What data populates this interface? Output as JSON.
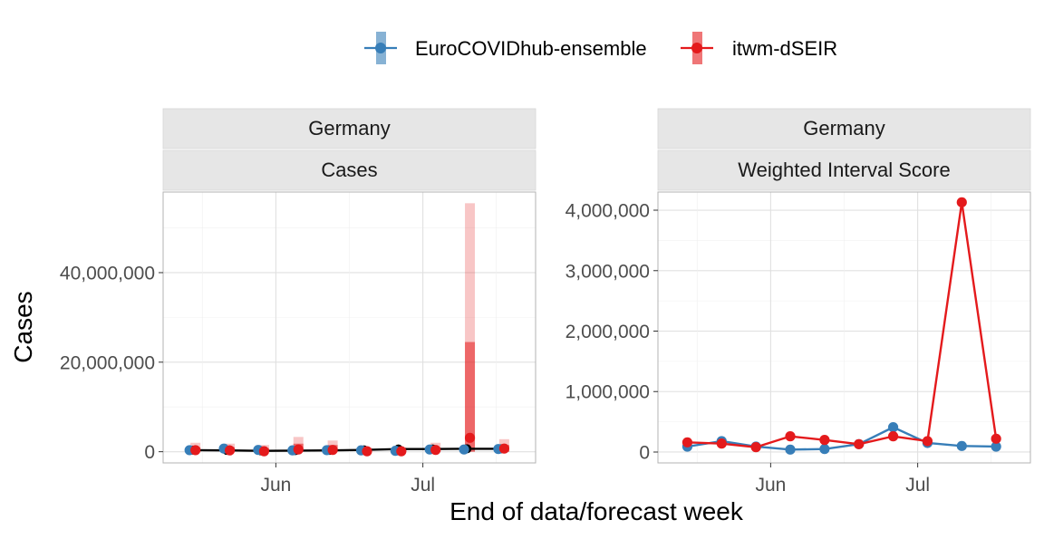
{
  "legend": [
    {
      "label": "EuroCOVIDhub-ensemble",
      "color": "#377EB8"
    },
    {
      "label": "itwm-dSEIR",
      "color": "#E41A1C"
    }
  ],
  "xlabel": "End of data/forecast week",
  "ylabel": "Cases",
  "observed_color": "#000000",
  "chart_data": [
    {
      "type": "line",
      "strip_top": "Germany",
      "strip_bottom": "Cases",
      "x_ticks": [
        {
          "label": "Jun",
          "date": "2021-06-01"
        },
        {
          "label": "Jul",
          "date": "2021-07-01"
        }
      ],
      "y_ticks": [
        {
          "label": "0",
          "value": 0
        },
        {
          "label": "20,000,000",
          "value": 20000000
        },
        {
          "label": "40,000,000",
          "value": 40000000
        }
      ],
      "xlim": [
        "2021-05-09",
        "2021-07-24"
      ],
      "ylim": [
        -2500000,
        58000000
      ],
      "dodge_days": 1.2,
      "observed": {
        "name": "Observed",
        "x": [
          "2021-05-15",
          "2021-05-22",
          "2021-05-29",
          "2021-06-05",
          "2021-06-12",
          "2021-06-19",
          "2021-06-26",
          "2021-07-03",
          "2021-07-10",
          "2021-07-17"
        ],
        "y": [
          350000,
          300000,
          200000,
          250000,
          300000,
          400000,
          600000,
          600000,
          650000,
          650000
        ]
      },
      "series": [
        {
          "name": "EuroCOVIDhub-ensemble",
          "x": [
            "2021-05-15",
            "2021-05-22",
            "2021-05-29",
            "2021-06-05",
            "2021-06-12",
            "2021-06-19",
            "2021-06-26",
            "2021-07-03",
            "2021-07-10",
            "2021-07-17"
          ],
          "y": [
            350000,
            700000,
            400000,
            300000,
            350000,
            300000,
            200000,
            500000,
            500000,
            600000
          ]
        },
        {
          "name": "itwm-dSEIR",
          "x": [
            "2021-05-15",
            "2021-05-22",
            "2021-05-29",
            "2021-06-05",
            "2021-06-12",
            "2021-06-19",
            "2021-06-26",
            "2021-07-03",
            "2021-07-10",
            "2021-07-17"
          ],
          "y": [
            350000,
            300000,
            100000,
            500000,
            400000,
            100000,
            100000,
            400000,
            3100000,
            700000
          ],
          "interval_outer_high": [
            2000000,
            1800000,
            1500000,
            3300000,
            2500000,
            1000000,
            1000000,
            2000000,
            55500000,
            2800000
          ],
          "interval_inner_high": [
            1000000,
            1000000,
            800000,
            1800000,
            1500000,
            500000,
            500000,
            1000000,
            24500000,
            1500000
          ]
        }
      ]
    },
    {
      "type": "line",
      "strip_top": "Germany",
      "strip_bottom": "Weighted Interval Score",
      "x_ticks": [
        {
          "label": "Jun",
          "date": "2021-06-01"
        },
        {
          "label": "Jul",
          "date": "2021-07-01"
        }
      ],
      "y_ticks": [
        {
          "label": "0",
          "value": 0
        },
        {
          "label": "1,000,000",
          "value": 1000000
        },
        {
          "label": "2,000,000",
          "value": 2000000
        },
        {
          "label": "3,000,000",
          "value": 3000000
        },
        {
          "label": "4,000,000",
          "value": 4000000
        }
      ],
      "xlim": [
        "2021-05-09",
        "2021-07-24"
      ],
      "ylim": [
        -180000,
        4300000
      ],
      "series": [
        {
          "name": "EuroCOVIDhub-ensemble",
          "x": [
            "2021-05-15",
            "2021-05-22",
            "2021-05-29",
            "2021-06-05",
            "2021-06-12",
            "2021-06-19",
            "2021-06-26",
            "2021-07-03",
            "2021-07-10",
            "2021-07-17"
          ],
          "y": [
            90000,
            180000,
            90000,
            40000,
            50000,
            130000,
            410000,
            150000,
            100000,
            90000
          ]
        },
        {
          "name": "itwm-dSEIR",
          "x": [
            "2021-05-15",
            "2021-05-22",
            "2021-05-29",
            "2021-06-05",
            "2021-06-12",
            "2021-06-19",
            "2021-06-26",
            "2021-07-03",
            "2021-07-10",
            "2021-07-17"
          ],
          "y": [
            160000,
            140000,
            80000,
            260000,
            200000,
            130000,
            260000,
            180000,
            4130000,
            220000
          ]
        }
      ]
    }
  ]
}
